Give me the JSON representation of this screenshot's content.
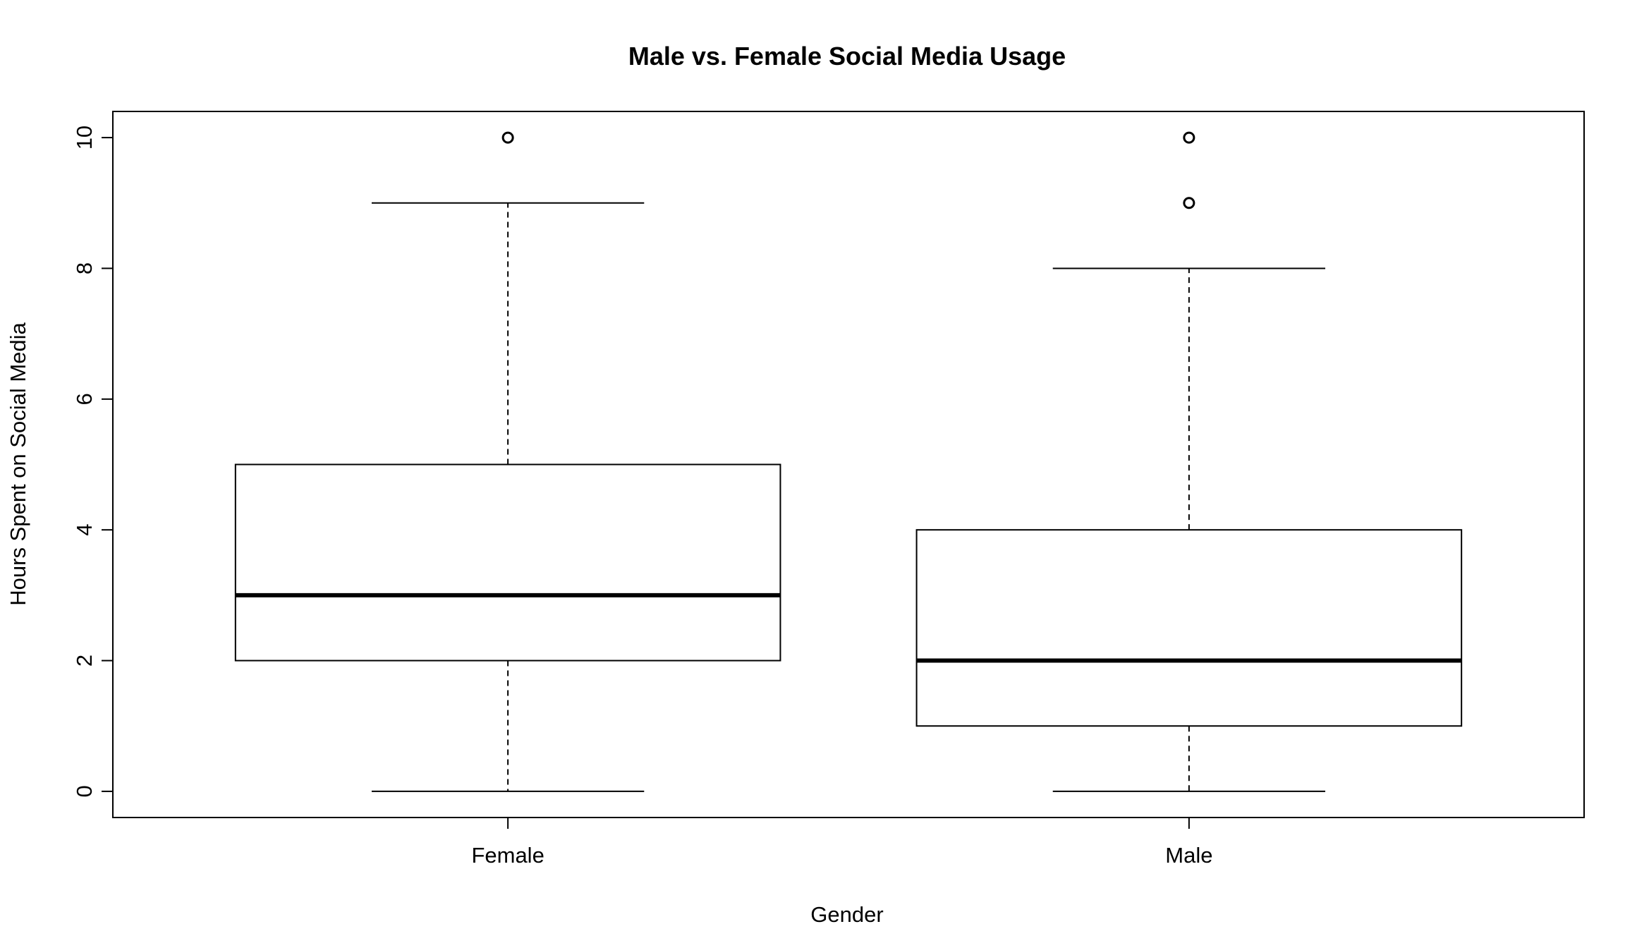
{
  "chart_data": {
    "type": "boxplot",
    "title": "Male vs. Female Social Media Usage",
    "xlabel": "Gender",
    "ylabel": "Hours Spent on Social Media",
    "ylim": [
      -0.4,
      10.4
    ],
    "yticks": [
      0,
      2,
      4,
      6,
      8,
      10
    ],
    "grid": false,
    "categories": [
      "Female",
      "Male"
    ],
    "boxes": [
      {
        "category": "Female",
        "whisker_low": 0,
        "q1": 2,
        "median": 3,
        "q3": 5,
        "whisker_high": 9,
        "outliers": [
          10
        ]
      },
      {
        "category": "Male",
        "whisker_low": 0,
        "q1": 1,
        "median": 2,
        "q3": 4,
        "whisker_high": 8,
        "outliers": [
          9,
          10
        ]
      }
    ]
  }
}
